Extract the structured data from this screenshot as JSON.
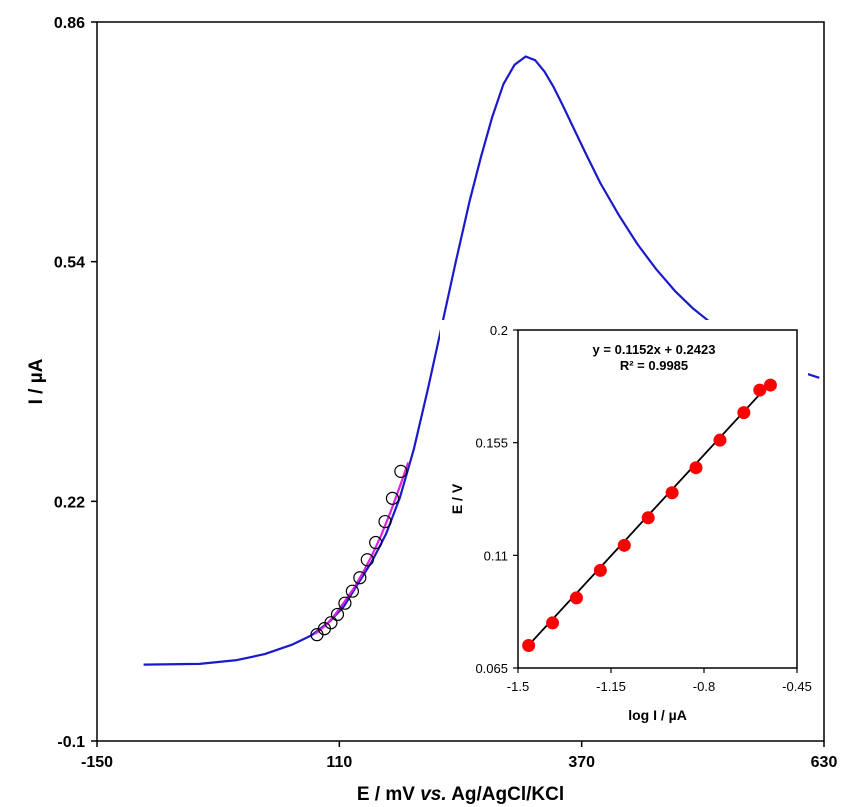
{
  "chart_data": [
    {
      "type": "line",
      "xlabel_parts": [
        "E / mV ",
        "vs.",
        " Ag/AgCl/KCl"
      ],
      "ylabel": "I / µA",
      "xlim": [
        -150,
        630
      ],
      "ylim": [
        -0.1,
        0.86
      ],
      "x_ticks": [
        -150,
        110,
        370,
        630
      ],
      "x_tick_labels": [
        "-150",
        "110",
        "370",
        "630"
      ],
      "y_ticks": [
        -0.1,
        0.22,
        0.54,
        0.86
      ],
      "y_tick_labels": [
        "-0.1",
        "0.22",
        "0.54",
        "0.86"
      ],
      "grid": false,
      "series": [
        {
          "style": "line",
          "color": "#1a1acc",
          "x": [
            -100,
            -40,
            0,
            30,
            60,
            80,
            100,
            115,
            130,
            145,
            160,
            175,
            190,
            205,
            220,
            235,
            250,
            262,
            274,
            286,
            298,
            310,
            320,
            330,
            340,
            350,
            360,
            375,
            390,
            410,
            430,
            450,
            470,
            490,
            510,
            530,
            550,
            570,
            590,
            610,
            625
          ],
          "y": [
            0.002,
            0.003,
            0.008,
            0.016,
            0.029,
            0.041,
            0.06,
            0.08,
            0.11,
            0.14,
            0.176,
            0.225,
            0.29,
            0.37,
            0.455,
            0.54,
            0.622,
            0.68,
            0.733,
            0.777,
            0.803,
            0.814,
            0.809,
            0.794,
            0.773,
            0.748,
            0.722,
            0.683,
            0.645,
            0.602,
            0.563,
            0.53,
            0.501,
            0.477,
            0.457,
            0.44,
            0.424,
            0.411,
            0.4,
            0.391,
            0.385
          ]
        },
        {
          "style": "line",
          "color": "#e020e0",
          "x": [
            84,
            95,
            105,
            115,
            125,
            135,
            145,
            155,
            165,
            175,
            184
          ],
          "y": [
            0.043,
            0.054,
            0.068,
            0.085,
            0.103,
            0.124,
            0.148,
            0.175,
            0.206,
            0.24,
            0.272
          ]
        },
        {
          "style": "markers",
          "marker": "open-circle",
          "color": "#000000",
          "x": [
            86,
            94,
            101,
            108,
            116,
            124,
            132,
            140,
            149,
            159,
            167,
            176
          ],
          "y": [
            0.042,
            0.05,
            0.058,
            0.069,
            0.084,
            0.1,
            0.118,
            0.142,
            0.165,
            0.193,
            0.224,
            0.26
          ]
        }
      ]
    },
    {
      "type": "scatter",
      "xlabel": "log I / µA",
      "ylabel": "E / V",
      "xlim": [
        -1.5,
        -0.45
      ],
      "ylim": [
        0.065,
        0.2
      ],
      "x_ticks": [
        -1.5,
        -1.15,
        -0.8,
        -0.45
      ],
      "x_tick_labels": [
        "-1.5",
        "-1.15",
        "-0.8",
        "-0.45"
      ],
      "y_ticks": [
        0.065,
        0.11,
        0.155,
        0.2
      ],
      "y_tick_labels": [
        "0.065",
        "0.11",
        "0.155",
        "0.2"
      ],
      "grid": false,
      "annotations": [
        "y = 0.1152x  + 0.2423",
        "R² = 0.9985"
      ],
      "trendline": {
        "slope": 0.1152,
        "intercept": 0.2423,
        "x_range": [
          -1.46,
          -0.55
        ],
        "color": "#000000"
      },
      "series": [
        {
          "style": "markers",
          "marker": "filled-circle",
          "color": "#ff0000",
          "x": [
            -1.46,
            -1.37,
            -1.28,
            -1.19,
            -1.1,
            -1.01,
            -0.92,
            -0.83,
            -0.74,
            -0.65,
            -0.59,
            -0.55
          ],
          "y": [
            0.074,
            0.083,
            0.093,
            0.104,
            0.114,
            0.125,
            0.135,
            0.145,
            0.156,
            0.167,
            0.176,
            0.178
          ]
        }
      ]
    }
  ]
}
